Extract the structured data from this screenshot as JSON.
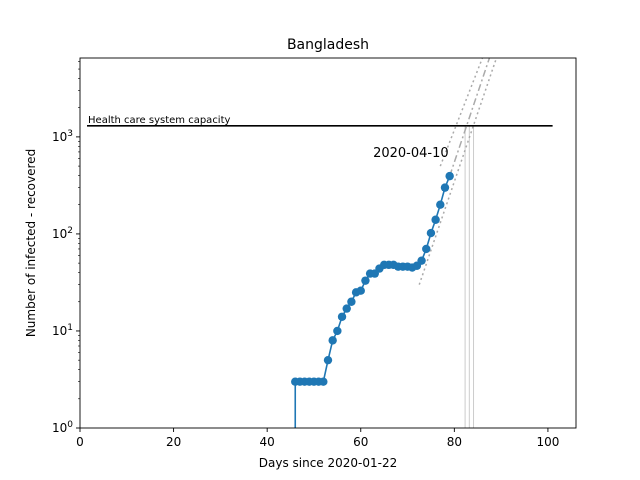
{
  "chart_data": {
    "type": "line",
    "title": "Bangladesh",
    "xlabel": "Days since 2020-01-22",
    "ylabel": "Number of infected - recovered",
    "xlim": [
      0,
      106
    ],
    "ylim": [
      1,
      6500
    ],
    "yscale": "log",
    "x_ticks": [
      0,
      20,
      40,
      60,
      80,
      100
    ],
    "x_tick_labels": [
      "0",
      "20",
      "40",
      "60",
      "80",
      "100"
    ],
    "y_ticks": [
      1,
      10,
      100,
      1000
    ],
    "y_tick_labels": [
      "10^0",
      "10^1",
      "10^2",
      "10^3"
    ],
    "grid": false,
    "series": [
      {
        "color": "#1f77b4",
        "x": [
          46,
          47,
          48,
          49,
          50,
          51,
          52,
          53,
          54,
          55,
          56,
          57,
          58,
          59,
          60,
          61,
          62,
          63,
          64,
          65,
          66,
          67,
          68,
          69,
          70,
          71,
          72,
          73,
          74,
          75,
          76,
          77,
          78,
          79
        ],
        "y": [
          3,
          3,
          3,
          3,
          3,
          3,
          3,
          5,
          8,
          10,
          14,
          17,
          20,
          25,
          26,
          33,
          39,
          39,
          44,
          48,
          48,
          48,
          46,
          46,
          46,
          45,
          47,
          53,
          70,
          102,
          140,
          200,
          300,
          394
        ]
      }
    ],
    "capacity_line": {
      "label": "Health care system capacity",
      "value": 1300,
      "x_range": [
        1.5,
        101
      ],
      "color": "#000000"
    },
    "date_annotation": {
      "text": "2020-04-10",
      "x": 79,
      "y": 394
    },
    "projections": [
      {
        "style": "dotted",
        "color": "#aaaaaa",
        "x": [
          72.5,
          89
        ],
        "y": [
          30,
          7000
        ]
      },
      {
        "style": "dotted",
        "color": "#aaaaaa",
        "x": [
          77,
          86
        ],
        "y": [
          500,
          7000
        ]
      },
      {
        "style": "dashdot",
        "color": "#aaaaaa",
        "x": [
          79,
          87.5
        ],
        "y": [
          394,
          6500
        ]
      }
    ],
    "vertical_markers": [
      {
        "x": 82.3,
        "color": "#cccccc"
      },
      {
        "x": 83.2,
        "color": "#cccccc"
      },
      {
        "x": 84.1,
        "color": "#cccccc"
      }
    ]
  }
}
